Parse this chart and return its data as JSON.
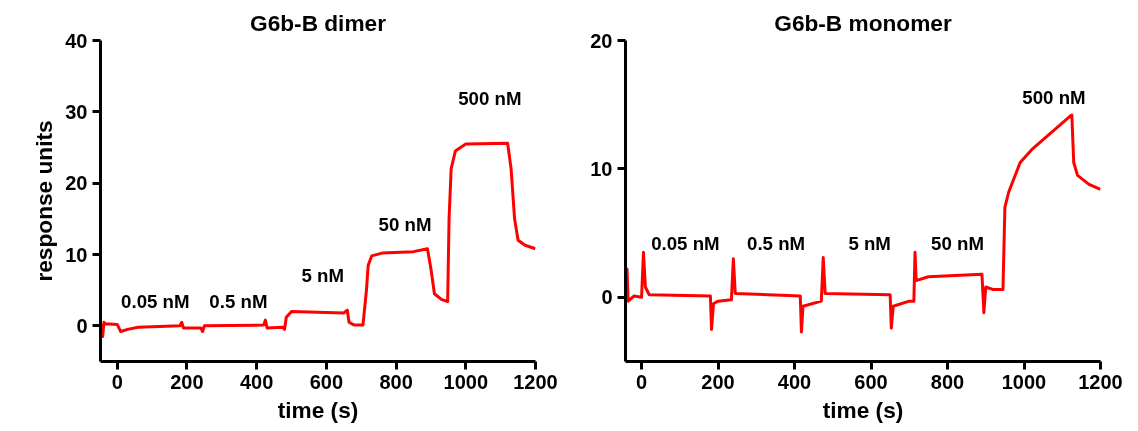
{
  "chart_data": [
    {
      "type": "line",
      "title": "G6b-B dimer",
      "xlabel": "time (s)",
      "ylabel": "response units",
      "xlim": [
        -48,
        1200
      ],
      "ylim": [
        -5,
        40
      ],
      "xticks": [
        0,
        200,
        400,
        600,
        800,
        1000,
        1200
      ],
      "yticks": [
        0,
        10,
        20,
        30,
        40
      ],
      "grid": false,
      "series": [
        {
          "color": "#ff0000",
          "x": [
            -45,
            -42,
            -38,
            -35,
            0,
            10,
            30,
            60,
            180,
            185,
            190,
            240,
            245,
            250,
            420,
            425,
            430,
            475,
            480,
            485,
            500,
            650,
            660,
            665,
            680,
            705,
            715,
            720,
            730,
            760,
            850,
            890,
            900,
            910,
            930,
            948,
            952,
            958,
            970,
            1000,
            1120,
            1130,
            1140,
            1150,
            1170,
            1200
          ],
          "values": [
            0.3,
            -1.5,
            0.5,
            0.3,
            0.2,
            -0.8,
            -0.5,
            -0.2,
            0,
            0.5,
            -0.3,
            -0.3,
            -0.8,
            0,
            0.1,
            0.8,
            -0.3,
            -0.2,
            -0.5,
            1.2,
            2,
            1.8,
            2.2,
            0.5,
            0.1,
            0.1,
            5,
            8.5,
            9.8,
            10.2,
            10.4,
            10.8,
            8,
            4.5,
            3.7,
            3.4,
            15,
            22,
            24.5,
            25.5,
            25.6,
            22,
            15,
            12,
            11.3,
            10.8
          ]
        }
      ],
      "annotations": [
        "0.05 nM",
        "0.5 nM",
        "5 nM",
        "50 nM",
        "500 nM"
      ]
    },
    {
      "type": "line",
      "title": "G6b-B monomer",
      "xlabel": "time (s)",
      "xlim": [
        -42,
        1200
      ],
      "ylim": [
        -5,
        20
      ],
      "xticks": [
        0,
        200,
        400,
        600,
        800,
        1000,
        1200
      ],
      "yticks": [
        0,
        10,
        20
      ],
      "grid": false,
      "series": [
        {
          "color": "#ff0000",
          "x": [
            -40,
            -38,
            -35,
            -20,
            0,
            5,
            10,
            20,
            180,
            183,
            188,
            200,
            235,
            240,
            245,
            415,
            418,
            422,
            470,
            475,
            480,
            650,
            653,
            658,
            700,
            712,
            715,
            718,
            750,
            890,
            895,
            900,
            920,
            945,
            950,
            960,
            990,
            1020,
            1120,
            1125,
            1130,
            1140,
            1170,
            1200
          ],
          "values": [
            0,
            2.2,
            -0.3,
            0.1,
            0,
            3.5,
            0.8,
            0.2,
            0.1,
            -2.5,
            -0.5,
            -0.3,
            -0.2,
            3,
            0.3,
            0.1,
            -2.7,
            -0.7,
            -0.3,
            3.1,
            0.3,
            0.2,
            -2.4,
            -0.7,
            -0.3,
            -0.3,
            3.5,
            1.3,
            1.6,
            1.8,
            -1.2,
            0.8,
            0.6,
            0.6,
            7,
            8.2,
            10.5,
            11.5,
            14.1,
            14.2,
            10.5,
            9.5,
            8.8,
            8.4
          ]
        }
      ],
      "annotations": [
        "0.05 nM",
        "0.5 nM",
        "5 nM",
        "50 nM",
        "500 nM"
      ]
    }
  ]
}
